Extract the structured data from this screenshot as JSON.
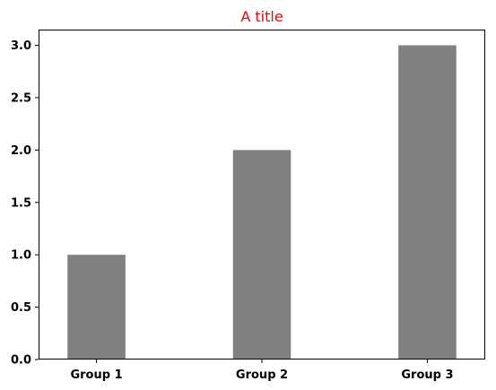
{
  "chart_data": {
    "type": "bar",
    "title": "A title",
    "title_color": "#ff0000",
    "categories": [
      "Group 1",
      "Group 2",
      "Group 3"
    ],
    "values": [
      1.0,
      2.0,
      3.0
    ],
    "bar_color": "#808080",
    "ylim": [
      0,
      3.15
    ],
    "yticks": [
      "0.0",
      "0.5",
      "1.0",
      "1.5",
      "2.0",
      "2.5",
      "3.0"
    ],
    "ytick_values": [
      0.0,
      0.5,
      1.0,
      1.5,
      2.0,
      2.5,
      3.0
    ],
    "xlabel": "",
    "ylabel": "",
    "grid": false,
    "legend": "none"
  }
}
